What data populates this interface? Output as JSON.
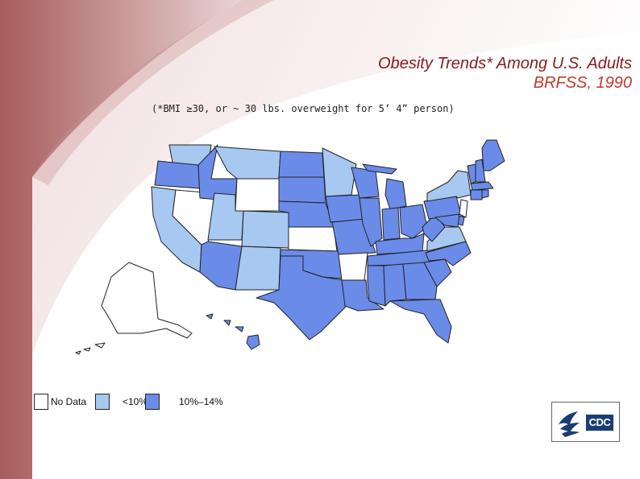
{
  "title": "Obesity Trends* Among U.S. Adults",
  "subtitle_year": "BRFSS, 1990",
  "footnote": "(*BMI ≥30, or ~ 30 lbs. overweight for 5’ 4” person)",
  "colors": {
    "no_data": "#ffffff",
    "lt10": "#a7c8f0",
    "10to14": "#6b8be8",
    "border": "#222222",
    "title_dark": "#8b1a1a",
    "title_red": "#c0392b",
    "cdc_blue": "#1a3e72"
  },
  "legend": [
    {
      "label": "No Data",
      "category": "no_data"
    },
    {
      "label": "<10%",
      "category": "lt10"
    },
    {
      "label": "10%–14%",
      "category": "10to14"
    }
  ],
  "states": {
    "WA": "lt10",
    "OR": "10to14",
    "CA": "lt10",
    "NV": "no_data",
    "ID": "10to14",
    "MT": "lt10",
    "WY": "no_data",
    "UT": "lt10",
    "CO": "lt10",
    "AZ": "10to14",
    "NM": "lt10",
    "ND": "10to14",
    "SD": "10to14",
    "NE": "10to14",
    "KS": "no_data",
    "OK": "10to14",
    "TX": "10to14",
    "MN": "lt10",
    "IA": "10to14",
    "MO": "10to14",
    "AR": "no_data",
    "LA": "10to14",
    "WI": "10to14",
    "IL": "10to14",
    "MI": "10to14",
    "IN": "10to14",
    "OH": "10to14",
    "KY": "10to14",
    "TN": "10to14",
    "MS": "10to14",
    "AL": "10to14",
    "GA": "10to14",
    "FL": "10to14",
    "SC": "10to14",
    "NC": "10to14",
    "VA": "lt10",
    "WV": "10to14",
    "PA": "10to14",
    "NY": "lt10",
    "VT": "10to14",
    "NH": "10to14",
    "ME": "10to14",
    "MA": "10to14",
    "CT": "10to14",
    "RI": "10to14",
    "NJ": "no_data",
    "DE": "10to14",
    "MD": "10to14",
    "AK": "no_data",
    "HI": "10to14"
  },
  "logo": {
    "text": "CDC"
  }
}
